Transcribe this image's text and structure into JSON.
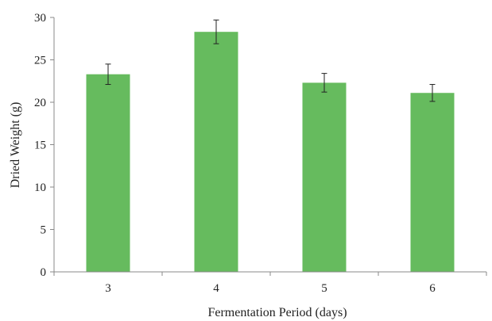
{
  "chart_data": {
    "type": "bar",
    "categories": [
      "3",
      "4",
      "5",
      "6"
    ],
    "values": [
      23.3,
      28.3,
      22.3,
      21.1
    ],
    "errors": [
      1.2,
      1.4,
      1.1,
      1.0
    ],
    "xlabel": "Fermentation Period (days)",
    "ylabel": "Dried Weight (g)",
    "ylim": [
      0,
      30
    ],
    "yticks": [
      0,
      5,
      10,
      15,
      20,
      25,
      30
    ],
    "grid": false,
    "legend": "none",
    "bar_color": "#66bb5e",
    "axis_color": "#888888",
    "error_bar_color": "#222222"
  }
}
